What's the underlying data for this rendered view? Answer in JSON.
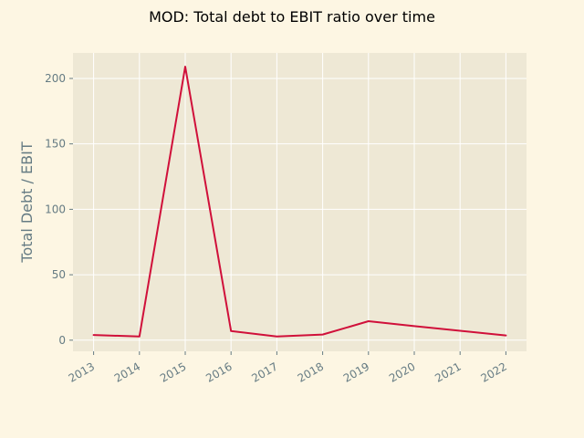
{
  "chart_data": {
    "type": "line",
    "title": "MOD: Total debt to EBIT ratio over time",
    "xlabel": "",
    "ylabel": "Total Debt / EBIT",
    "categories": [
      "2013",
      "2014",
      "2015",
      "2016",
      "2017",
      "2018",
      "2019",
      "2020",
      "2021",
      "2022"
    ],
    "series": [
      {
        "name": "Total Debt / EBIT",
        "color": "#d0103a",
        "x": [
          2013,
          2014,
          2015,
          2016,
          2017,
          2018,
          2019,
          2020,
          2021,
          2022
        ],
        "values": [
          4.0,
          2.8,
          209.0,
          7.0,
          2.8,
          4.3,
          14.5,
          10.8,
          7.2,
          3.6
        ]
      }
    ],
    "xlim": [
      2012.55,
      2022.45
    ],
    "ylim": [
      -8.5,
      219.5
    ],
    "yticks": [
      0,
      50,
      100,
      150,
      200
    ],
    "grid": true,
    "colors": {
      "figure_bg": "#fdf6e3",
      "axes_bg": "#eee8d5",
      "grid": "#ffffff",
      "text": "#657b83",
      "title": "#000000"
    }
  }
}
